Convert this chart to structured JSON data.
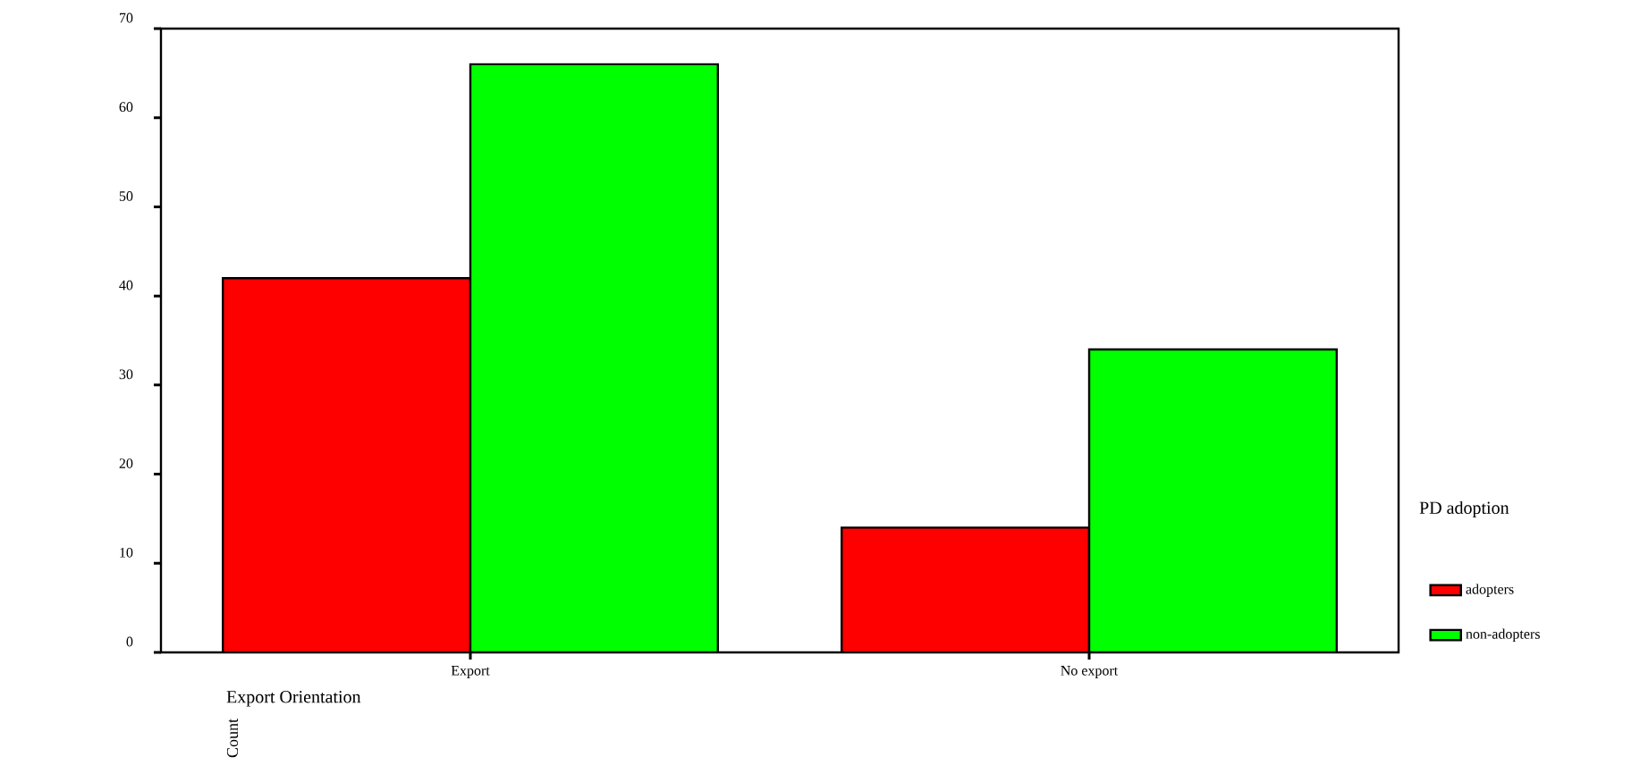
{
  "chart_data": {
    "type": "bar",
    "xlabel": "Export Orientation",
    "ylabel": "Count",
    "legend_title": "PD adoption",
    "categories": [
      "Export",
      "No export"
    ],
    "series": [
      {
        "name": "adopters",
        "color": "#ff0000",
        "values": [
          42,
          14
        ]
      },
      {
        "name": "non-adopters",
        "color": "#00ff00",
        "values": [
          66,
          34
        ]
      }
    ],
    "ylim": [
      0,
      70
    ],
    "yticks": [
      0,
      10,
      20,
      30,
      40,
      50,
      60,
      70
    ],
    "legend": "right",
    "grid": false
  }
}
